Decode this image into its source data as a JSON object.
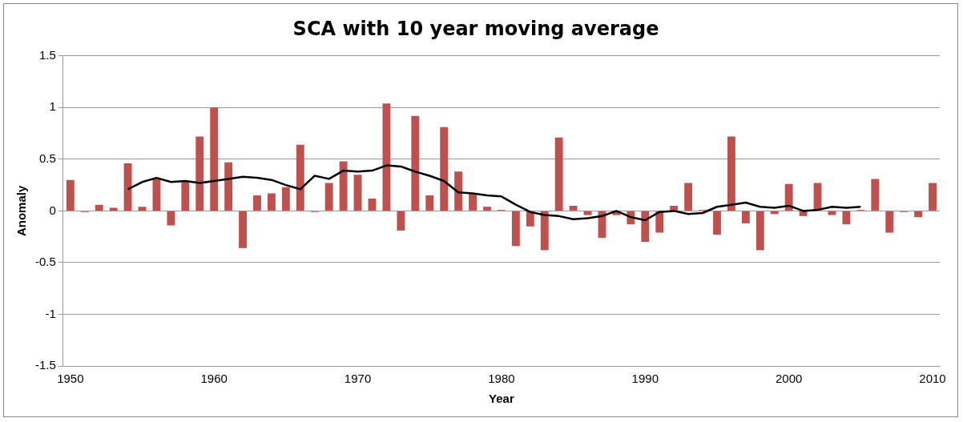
{
  "chart_data": {
    "type": "bar",
    "title": "SCA with 10 year moving average",
    "xlabel": "Year",
    "ylabel": "Anomaly",
    "categories": [
      "1950",
      null,
      null,
      null,
      null,
      null,
      null,
      null,
      null,
      null,
      "1960",
      null,
      null,
      null,
      null,
      null,
      null,
      null,
      null,
      null,
      "1970",
      null,
      null,
      null,
      null,
      null,
      null,
      null,
      null,
      null,
      "1980",
      null,
      null,
      null,
      null,
      null,
      null,
      null,
      null,
      null,
      "1990",
      null,
      null,
      null,
      null,
      null,
      null,
      null,
      null,
      null,
      "2000",
      null,
      null,
      null,
      null,
      null,
      null,
      null,
      null,
      null,
      "2010"
    ],
    "series": [
      {
        "color": "#c0504d",
        "values": [
          0.3,
          -0.01,
          0.06,
          0.03,
          0.46,
          0.04,
          0.31,
          -0.14,
          0.29,
          0.72,
          1.0,
          0.47,
          -0.36,
          0.15,
          0.17,
          0.23,
          0.64,
          -0.01,
          0.27,
          0.48,
          0.35,
          0.12,
          1.04,
          -0.19,
          0.92,
          0.15,
          0.81,
          0.38,
          0.17,
          0.04,
          0.01,
          -0.34,
          -0.15,
          -0.38,
          0.71,
          0.05,
          -0.04,
          -0.26,
          -0.04,
          -0.13,
          -0.3,
          -0.21,
          0.05,
          0.27,
          0.01,
          -0.23,
          0.72,
          -0.12,
          -0.38,
          -0.03,
          0.26,
          -0.05,
          0.27,
          -0.04,
          -0.13,
          0.01,
          0.31,
          -0.21,
          -0.01,
          -0.06,
          0.27
        ]
      },
      {
        "type": "line",
        "color": "#000000",
        "values": [
          null,
          null,
          null,
          null,
          0.21,
          0.28,
          0.32,
          0.28,
          0.29,
          0.27,
          0.29,
          0.31,
          0.33,
          0.32,
          0.3,
          0.25,
          0.21,
          0.34,
          0.31,
          0.39,
          0.38,
          0.39,
          0.44,
          0.43,
          0.38,
          0.34,
          0.29,
          0.18,
          0.17,
          0.15,
          0.14,
          0.06,
          -0.01,
          -0.04,
          -0.05,
          -0.08,
          -0.07,
          -0.05,
          0.0,
          -0.06,
          -0.09,
          -0.01,
          0.0,
          -0.03,
          -0.02,
          0.04,
          0.06,
          0.08,
          0.04,
          0.03,
          0.05,
          0.0,
          0.01,
          0.04,
          0.03,
          0.04,
          null,
          null,
          null,
          null,
          null
        ]
      }
    ],
    "ylim": [
      -1.5,
      1.5
    ],
    "yticks": [
      -1.5,
      -1,
      -0.5,
      0,
      0.5,
      1,
      1.5
    ],
    "grid": "y",
    "legend": false,
    "marker": "none",
    "line_style": "solid"
  }
}
